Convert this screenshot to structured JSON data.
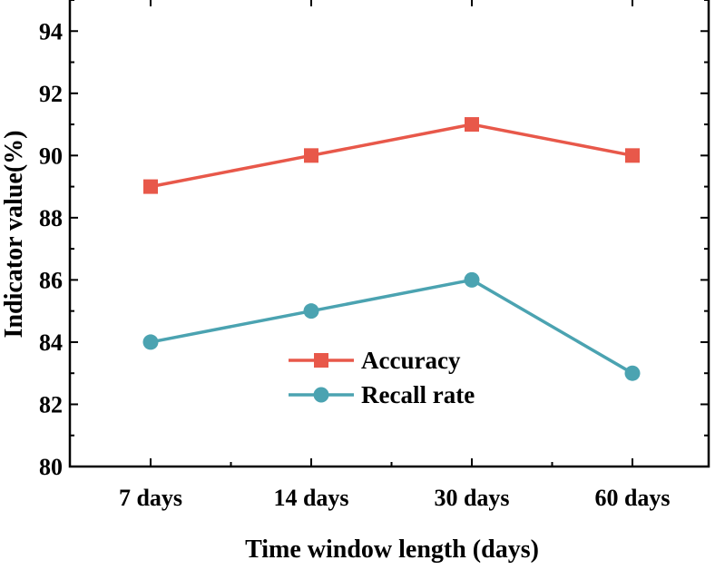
{
  "chart_data": {
    "type": "line",
    "title": "",
    "xlabel": "Time window length (days)",
    "ylabel": "Indicator value(%)",
    "categories": [
      "7 days",
      "14 days",
      "30 days",
      "60 days"
    ],
    "ylim": [
      80,
      95
    ],
    "yticks": [
      80,
      82,
      84,
      86,
      88,
      90,
      92,
      94
    ],
    "grid": false,
    "legend_position": "center",
    "series": [
      {
        "name": "Accuracy",
        "values": [
          89,
          90,
          91,
          90
        ],
        "color": "#E8584A",
        "marker": "square"
      },
      {
        "name": "Recall rate",
        "values": [
          84,
          85,
          86,
          83
        ],
        "color": "#4BA3B1",
        "marker": "circle"
      }
    ]
  }
}
